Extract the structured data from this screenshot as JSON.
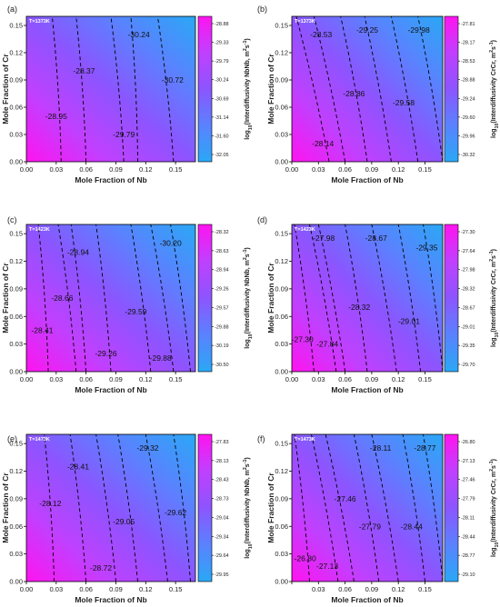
{
  "figure": {
    "common": {
      "xlabel": "Mole Fraction of Nb",
      "ylabel": "Mole Fraction of  Cr",
      "x_ticks": [
        "0.00",
        "0.03",
        "0.06",
        "0.09",
        "0.12",
        "0.15"
      ],
      "y_ticks": [
        "0.00",
        "0.03",
        "0.06",
        "0.09",
        "0.12",
        "0.15"
      ],
      "colormap": [
        "#ff14f0",
        "#c040ff",
        "#8c55ff",
        "#5a82ff",
        "#2aa8f5"
      ],
      "contour_color": "#000000"
    }
  },
  "chart_data": [
    {
      "type": "heatmap",
      "panel": "(a)",
      "annotation": "T=1373K",
      "xlabel": "Mole Fraction of Nb",
      "ylabel": "Mole Fraction of  Cr",
      "colorbar_label": "log₁₀(Interdiffusivity NbNb, m²s⁻¹)",
      "colorbar_ticks": [
        "-28.88",
        "-29.33",
        "-29.79",
        "-30.24",
        "-30.69",
        "-31.14",
        "-31.60",
        "-32.05"
      ],
      "xlim": [
        0,
        0.17
      ],
      "ylim": [
        0,
        0.16
      ],
      "contours": [
        {
          "label": "-28.95",
          "x_bottom": 0.035,
          "x_top": 0.026,
          "label_at": [
            0.03,
            0.05
          ]
        },
        {
          "label": "-28.37",
          "x_bottom": 0.06,
          "x_top": 0.05,
          "label_at": [
            0.058,
            0.1
          ]
        },
        {
          "label": "-29.79",
          "x_bottom": 0.098,
          "x_top": 0.085,
          "label_at": [
            0.098,
            0.03
          ]
        },
        {
          "label": "-30.24",
          "x_bottom": 0.112,
          "x_top": 0.105,
          "label_at": [
            0.113,
            0.14
          ]
        },
        {
          "label": "-30.72",
          "x_bottom": 0.148,
          "x_top": 0.132,
          "label_at": [
            0.147,
            0.09
          ]
        }
      ]
    },
    {
      "type": "heatmap",
      "panel": "(b)",
      "annotation": "T=1373K",
      "xlabel": "Mole Fraction of Nb",
      "ylabel": "Mole Fraction of  Cr",
      "colorbar_label": "log₁₀(Interdiffusivity CrCr, m²s⁻¹)",
      "colorbar_ticks": [
        "-27.81",
        "-28.17",
        "-28.53",
        "-28.88",
        "-29.24",
        "-29.60",
        "-29.96",
        "-30.32"
      ],
      "xlim": [
        0,
        0.17
      ],
      "ylim": [
        0,
        0.16
      ],
      "contours": [
        {
          "label": "-28.14",
          "x_bottom": 0.042,
          "x_top": 0.005,
          "label_at": [
            0.035,
            0.02
          ]
        },
        {
          "label": "-28.53",
          "x_bottom": 0.06,
          "x_top": 0.025,
          "label_at": [
            0.033,
            0.14
          ]
        },
        {
          "label": "-28.86",
          "x_bottom": 0.085,
          "x_top": 0.055,
          "label_at": [
            0.07,
            0.075
          ]
        },
        {
          "label": "-29.25",
          "x_bottom": 0.112,
          "x_top": 0.082,
          "label_at": [
            0.085,
            0.145
          ]
        },
        {
          "label": "-29.58",
          "x_bottom": 0.142,
          "x_top": 0.112,
          "label_at": [
            0.126,
            0.065
          ]
        },
        {
          "label": "-29.98",
          "x_bottom": 0.17,
          "x_top": 0.142,
          "label_at": [
            0.143,
            0.145
          ]
        }
      ]
    },
    {
      "type": "heatmap",
      "panel": "(c)",
      "annotation": "T=1423K",
      "xlabel": "Mole Fraction of Nb",
      "ylabel": "Mole Fraction of  Cr",
      "colorbar_label": "log₁₀(Interdiffusivity NbNb, m²s⁻¹)",
      "colorbar_ticks": [
        "-28.32",
        "-28.63",
        "-28.94",
        "-29.26",
        "-29.57",
        "-29.88",
        "-30.19",
        "-30.50"
      ],
      "xlim": [
        0,
        0.17
      ],
      "ylim": [
        0,
        0.16
      ],
      "contours": [
        {
          "label": "-28.41",
          "x_bottom": 0.022,
          "x_top": 0.012,
          "label_at": [
            0.016,
            0.045
          ]
        },
        {
          "label": "-28.66",
          "x_bottom": 0.05,
          "x_top": 0.032,
          "label_at": [
            0.036,
            0.08
          ]
        },
        {
          "label": "-28.94",
          "x_bottom": 0.06,
          "x_top": 0.045,
          "label_at": [
            0.052,
            0.13
          ]
        },
        {
          "label": "-29.26",
          "x_bottom": 0.085,
          "x_top": 0.07,
          "label_at": [
            0.08,
            0.02
          ]
        },
        {
          "label": "-29.59",
          "x_bottom": 0.125,
          "x_top": 0.105,
          "label_at": [
            0.11,
            0.065
          ]
        },
        {
          "label": "-29.88",
          "x_bottom": 0.148,
          "x_top": 0.125,
          "label_at": [
            0.135,
            0.015
          ]
        },
        {
          "label": "-30.20",
          "x_bottom": 0.165,
          "x_top": 0.145,
          "label_at": [
            0.145,
            0.14
          ]
        }
      ]
    },
    {
      "type": "heatmap",
      "panel": "(d)",
      "annotation": "T=1423K",
      "xlabel": "Mole Fraction of Nb",
      "ylabel": "Mole Fraction of Cr",
      "colorbar_label": "log₁₀(Interdiffusivity CrCr, m²s⁻¹)",
      "colorbar_ticks": [
        "-27.30",
        "-27.64",
        "-27.98",
        "-28.32",
        "-28.67",
        "-29.01",
        "-29.35",
        "-29.70"
      ],
      "xlim": [
        0,
        0.17
      ],
      "ylim": [
        0,
        0.16
      ],
      "contours": [
        {
          "label": "-27.30",
          "x_bottom": 0.025,
          "x_top": 0.003,
          "label_at": [
            0.012,
            0.035
          ]
        },
        {
          "label": "-27.84",
          "x_bottom": 0.05,
          "x_top": 0.02,
          "label_at": [
            0.04,
            0.03
          ]
        },
        {
          "label": "-27.98",
          "x_bottom": 0.06,
          "x_top": 0.03,
          "label_at": [
            0.036,
            0.145
          ]
        },
        {
          "label": "-28.32",
          "x_bottom": 0.085,
          "x_top": 0.06,
          "label_at": [
            0.076,
            0.07
          ]
        },
        {
          "label": "-28.67",
          "x_bottom": 0.118,
          "x_top": 0.09,
          "label_at": [
            0.095,
            0.145
          ]
        },
        {
          "label": "-29.01",
          "x_bottom": 0.145,
          "x_top": 0.12,
          "label_at": [
            0.132,
            0.055
          ]
        },
        {
          "label": "-29.35",
          "x_bottom": 0.17,
          "x_top": 0.148,
          "label_at": [
            0.152,
            0.135
          ]
        }
      ]
    },
    {
      "type": "heatmap",
      "panel": "(e)",
      "annotation": "T=1473K",
      "xlabel": "Mole Fraction of Nb",
      "ylabel": "Mole Fraction of Cr",
      "colorbar_label": "log₁₀(Interdiffusivity NbNb, m²s⁻¹)",
      "colorbar_ticks": [
        "-27.83",
        "-28.13",
        "-28.43",
        "-28.73",
        "-29.04",
        "-29.34",
        "-29.64",
        "-29.95"
      ],
      "xlim": [
        0,
        0.17
      ],
      "ylim": [
        0,
        0.16
      ],
      "contours": [
        {
          "label": "-28.12",
          "x_bottom": 0.028,
          "x_top": 0.018,
          "label_at": [
            0.024,
            0.085
          ]
        },
        {
          "label": "-28.41",
          "x_bottom": 0.06,
          "x_top": 0.044,
          "label_at": [
            0.052,
            0.125
          ]
        },
        {
          "label": "-28.72",
          "x_bottom": 0.09,
          "x_top": 0.07,
          "label_at": [
            0.075,
            0.015
          ]
        },
        {
          "label": "-29.05",
          "x_bottom": 0.112,
          "x_top": 0.092,
          "label_at": [
            0.098,
            0.065
          ]
        },
        {
          "label": "-29.32",
          "x_bottom": 0.142,
          "x_top": 0.12,
          "label_at": [
            0.122,
            0.145
          ]
        },
        {
          "label": "-29.62",
          "x_bottom": 0.165,
          "x_top": 0.148,
          "label_at": [
            0.15,
            0.075
          ]
        }
      ]
    },
    {
      "type": "heatmap",
      "panel": "(f)",
      "annotation": "T=1473K",
      "xlabel": "Mole Fraction of Nb",
      "ylabel": "Mole Fraction of Cr",
      "colorbar_label": "log₁₀(Interdiffusivity CrCr, m²s⁻¹)",
      "colorbar_ticks": [
        "-26.80",
        "-27.13",
        "-27.46",
        "-27.79",
        "-28.11",
        "-28.44",
        "-28.77",
        "-29.10"
      ],
      "xlim": [
        0,
        0.17
      ],
      "ylim": [
        0,
        0.16
      ],
      "x_tick_labels_shown": [
        "0.03",
        "0.06",
        "0.09",
        "0.12",
        "0.15"
      ],
      "contours": [
        {
          "label": "-26.80",
          "x_bottom": 0.02,
          "x_top": 0.003,
          "label_at": [
            0.015,
            0.025
          ]
        },
        {
          "label": "-27.13",
          "x_bottom": 0.052,
          "x_top": 0.022,
          "label_at": [
            0.04,
            0.017
          ]
        },
        {
          "label": "-27.46",
          "x_bottom": 0.07,
          "x_top": 0.038,
          "label_at": [
            0.06,
            0.09
          ]
        },
        {
          "label": "-27.79",
          "x_bottom": 0.098,
          "x_top": 0.07,
          "label_at": [
            0.088,
            0.06
          ]
        },
        {
          "label": "-28.11",
          "x_bottom": 0.12,
          "x_top": 0.09,
          "label_at": [
            0.1,
            0.145
          ]
        },
        {
          "label": "-28.44",
          "x_bottom": 0.15,
          "x_top": 0.125,
          "label_at": [
            0.135,
            0.06
          ]
        },
        {
          "label": "-28.77",
          "x_bottom": 0.17,
          "x_top": 0.148,
          "label_at": [
            0.15,
            0.145
          ]
        }
      ]
    }
  ]
}
